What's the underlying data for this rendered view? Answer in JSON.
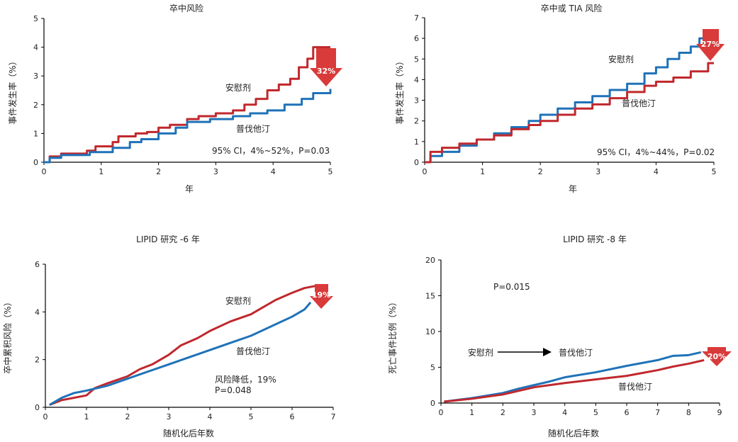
{
  "colors": {
    "placebo": "#c0282d",
    "pravastatin": "#1f72b8",
    "badge": "#d93a3a"
  },
  "chart_data": [
    {
      "type": "line",
      "title": "卒中风险",
      "xlabel": "年",
      "ylabel": "事件发生率（%）",
      "xlim": [
        0,
        5
      ],
      "ylim": [
        0,
        5
      ],
      "xticks": [
        0,
        1,
        2,
        3,
        4,
        5
      ],
      "yticks": [
        0,
        1,
        2,
        3,
        4,
        5
      ],
      "step": true,
      "series": [
        {
          "name": "安慰剂",
          "color": "placebo",
          "x": [
            0,
            0.1,
            0.3,
            0.75,
            0.9,
            1.2,
            1.3,
            1.6,
            1.8,
            2.0,
            2.2,
            2.5,
            2.7,
            3.0,
            3.3,
            3.5,
            3.7,
            3.9,
            4.1,
            4.3,
            4.45,
            4.6,
            4.7,
            5.0
          ],
          "y": [
            0,
            0.2,
            0.3,
            0.4,
            0.55,
            0.7,
            0.9,
            1.0,
            1.05,
            1.2,
            1.3,
            1.5,
            1.6,
            1.7,
            1.8,
            2.0,
            2.2,
            2.5,
            2.7,
            2.9,
            3.3,
            3.6,
            4.0,
            4.0
          ]
        },
        {
          "name": "普伐他汀",
          "color": "pravastatin",
          "x": [
            0,
            0.1,
            0.3,
            0.8,
            1.2,
            1.5,
            1.7,
            2.0,
            2.3,
            2.5,
            2.9,
            3.3,
            3.6,
            3.9,
            4.2,
            4.5,
            4.7,
            5.0
          ],
          "y": [
            0,
            0.15,
            0.25,
            0.35,
            0.5,
            0.7,
            0.8,
            1.0,
            1.2,
            1.4,
            1.5,
            1.6,
            1.7,
            1.8,
            2.0,
            2.2,
            2.4,
            2.55
          ]
        }
      ],
      "labels": [
        "安慰剂",
        "普伐他汀"
      ],
      "annotation": "95% CI，4%~52%，P=0.03",
      "badge": "32%"
    },
    {
      "type": "line",
      "title": "卒中或 TIA 风险",
      "xlabel": "年",
      "ylabel": "事件发生率（%）",
      "xlim": [
        0,
        5
      ],
      "ylim": [
        0,
        7
      ],
      "xticks": [
        0,
        1,
        2,
        3,
        4,
        5
      ],
      "yticks": [
        0,
        1,
        2,
        3,
        4,
        5,
        6,
        7
      ],
      "step": true,
      "series": [
        {
          "name": "安慰剂",
          "color": "pravastatin",
          "x": [
            0,
            0.1,
            0.3,
            0.6,
            0.9,
            1.2,
            1.5,
            1.8,
            2.0,
            2.3,
            2.6,
            2.9,
            3.2,
            3.5,
            3.8,
            4.0,
            4.2,
            4.4,
            4.6,
            4.75,
            4.85,
            5.0
          ],
          "y": [
            0,
            0.3,
            0.5,
            0.8,
            1.1,
            1.4,
            1.7,
            2.0,
            2.3,
            2.6,
            2.9,
            3.2,
            3.5,
            3.8,
            4.3,
            4.6,
            5.0,
            5.3,
            5.6,
            6.0,
            6.4,
            6.4
          ]
        },
        {
          "name": "普伐他汀",
          "color": "placebo",
          "x": [
            0,
            0.1,
            0.3,
            0.6,
            0.9,
            1.2,
            1.5,
            1.8,
            2.0,
            2.3,
            2.6,
            2.9,
            3.2,
            3.5,
            3.8,
            4.0,
            4.3,
            4.6,
            4.9,
            5.0
          ],
          "y": [
            0,
            0.5,
            0.7,
            0.9,
            1.1,
            1.3,
            1.6,
            1.8,
            2.0,
            2.3,
            2.6,
            2.8,
            3.1,
            3.4,
            3.7,
            3.9,
            4.1,
            4.4,
            4.8,
            4.8
          ]
        }
      ],
      "labels": [
        "安慰剂",
        "普伐他汀"
      ],
      "annotation": "95% CI，4%~44%，P=0.02",
      "badge": "27%"
    },
    {
      "type": "line",
      "title": "LIPID 研究 -6 年",
      "xlabel": "随机化后年数",
      "ylabel": "卒中累积风险（%）",
      "xlim": [
        0,
        7
      ],
      "ylim": [
        0,
        6
      ],
      "xticks": [
        0,
        1,
        2,
        3,
        4,
        5,
        6,
        7
      ],
      "yticks": [
        0,
        2,
        4,
        6
      ],
      "step": false,
      "series": [
        {
          "name": "安慰剂",
          "color": "placebo",
          "x": [
            0.1,
            0.4,
            1.0,
            1.2,
            1.5,
            2.0,
            2.3,
            2.6,
            3.0,
            3.3,
            3.7,
            4.0,
            4.5,
            5.0,
            5.3,
            5.6,
            6.0,
            6.3,
            6.6
          ],
          "y": [
            0.1,
            0.3,
            0.5,
            0.8,
            1.0,
            1.3,
            1.6,
            1.8,
            2.2,
            2.6,
            2.9,
            3.2,
            3.6,
            3.9,
            4.2,
            4.5,
            4.8,
            5.0,
            5.1
          ]
        },
        {
          "name": "普伐他汀",
          "color": "pravastatin",
          "x": [
            0.1,
            0.4,
            0.7,
            1.0,
            1.5,
            2.0,
            2.5,
            3.0,
            3.5,
            4.0,
            4.5,
            5.0,
            5.5,
            6.0,
            6.3,
            6.45
          ],
          "y": [
            0.1,
            0.4,
            0.6,
            0.7,
            0.9,
            1.2,
            1.5,
            1.8,
            2.1,
            2.4,
            2.7,
            3.0,
            3.4,
            3.8,
            4.1,
            4.4
          ]
        }
      ],
      "labels": [
        "安慰剂",
        "普伐他汀"
      ],
      "annotation": "风险降低，19%",
      "annotation2": "P=0.048",
      "badge": "19%"
    },
    {
      "type": "line",
      "title": "LIPID 研究 -8 年",
      "xlabel": "随机化后年数",
      "ylabel": "死亡事件比例（%）",
      "xlim": [
        0,
        9
      ],
      "ylim": [
        0,
        20
      ],
      "xticks": [
        0,
        1,
        2,
        3,
        4,
        5,
        6,
        7,
        8,
        9
      ],
      "yticks": [
        0,
        5,
        10,
        15,
        20
      ],
      "step": false,
      "series": [
        {
          "name": "普伐他汀",
          "color": "pravastatin",
          "x": [
            0.1,
            1.0,
            2.0,
            2.5,
            3.0,
            3.5,
            4.0,
            5.0,
            6.0,
            7.0,
            7.5,
            8.0,
            8.4
          ],
          "y": [
            0.2,
            0.7,
            1.4,
            2.0,
            2.5,
            3.0,
            3.6,
            4.3,
            5.2,
            6.0,
            6.6,
            6.7,
            7.1
          ]
        },
        {
          "name": "普伐他汀",
          "color": "placebo",
          "x": [
            0.1,
            1.0,
            2.0,
            3.0,
            4.0,
            5.0,
            6.0,
            7.0,
            7.5,
            8.0,
            8.5
          ],
          "y": [
            0.2,
            0.6,
            1.2,
            2.2,
            2.8,
            3.3,
            3.8,
            4.6,
            5.1,
            5.5,
            6.0
          ]
        }
      ],
      "labels": [
        "普伐他汀"
      ],
      "annotation": "P=0.015",
      "switch_from": "安慰剂",
      "switch_to": "普伐他汀",
      "badge": "20%"
    }
  ]
}
